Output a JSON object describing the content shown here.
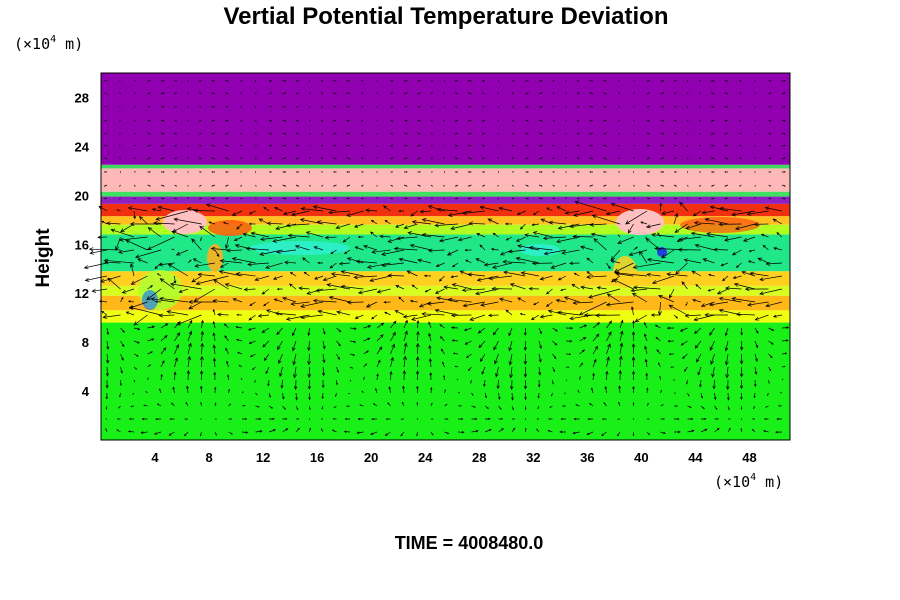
{
  "chart_data": {
    "type": "heatmap",
    "title": "Vertial Potential Temperature Deviation",
    "xlabel": "",
    "ylabel": "Height",
    "x_unit": "(×10",
    "x_unit_exp": "4",
    "x_unit_tail": " m)",
    "y_unit": "(×10",
    "y_unit_exp": "4",
    "y_unit_tail": " m)",
    "xlim": [
      0,
      51
    ],
    "ylim": [
      0,
      30
    ],
    "x_ticks": [
      4,
      8,
      12,
      16,
      20,
      24,
      28,
      32,
      36,
      40,
      44,
      48
    ],
    "y_ticks": [
      4,
      8,
      12,
      16,
      20,
      24,
      28
    ],
    "grid": false,
    "overlay": "velocity vectors",
    "bands": [
      {
        "y0": 0,
        "y1": 9.6,
        "color": "#18f018"
      },
      {
        "y0": 9.6,
        "y1": 10.6,
        "color": "#f0ff10"
      },
      {
        "y0": 10.6,
        "y1": 11.8,
        "color": "#ffb818"
      },
      {
        "y0": 11.8,
        "y1": 12.6,
        "color": "#d8ff20"
      },
      {
        "y0": 12.6,
        "y1": 13.8,
        "color": "#ffd020"
      },
      {
        "y0": 13.8,
        "y1": 16.8,
        "color": "#20e888"
      },
      {
        "y0": 16.8,
        "y1": 17.6,
        "color": "#b0ff20"
      },
      {
        "y0": 17.6,
        "y1": 18.3,
        "color": "#ffc020"
      },
      {
        "y0": 18.3,
        "y1": 19.3,
        "color": "#f03010"
      },
      {
        "y0": 19.3,
        "y1": 19.9,
        "color": "#9020c0"
      },
      {
        "y0": 19.9,
        "y1": 20.3,
        "color": "#40e060"
      },
      {
        "y0": 20.3,
        "y1": 22.2,
        "color": "#ffb8b8"
      },
      {
        "y0": 22.2,
        "y1": 22.5,
        "color": "#40d860"
      },
      {
        "y0": 22.5,
        "y1": 30,
        "color": "#9000b0"
      }
    ]
  },
  "time_label": "TIME = 4008480.0"
}
